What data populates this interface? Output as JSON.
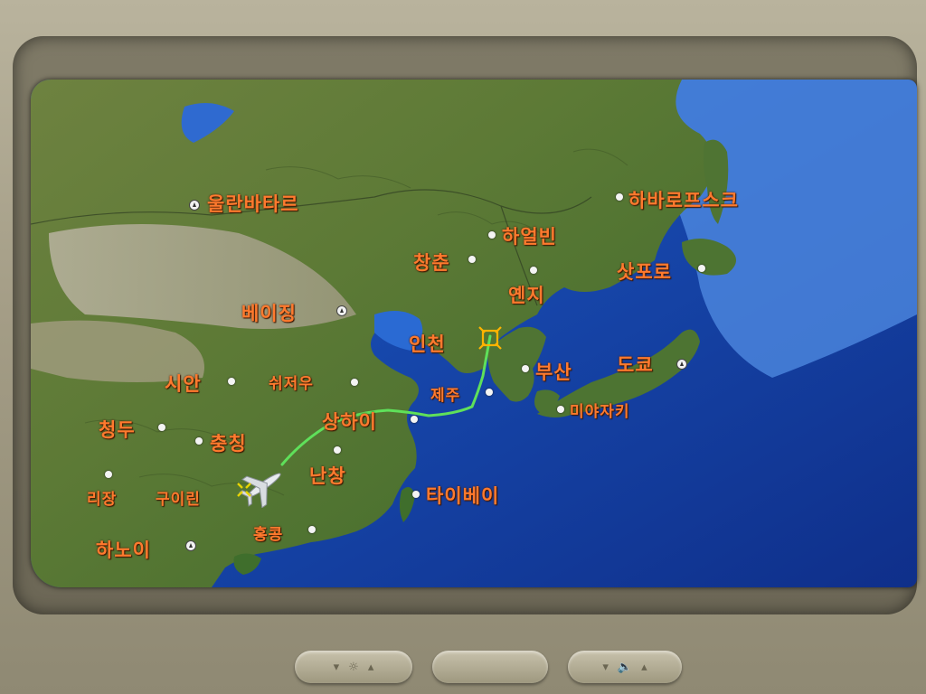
{
  "cities": [
    {
      "name": "울란바타르",
      "size": "large",
      "marker": "capital"
    },
    {
      "name": "하바로프스크",
      "size": "large",
      "marker": "city"
    },
    {
      "name": "하얼빈",
      "size": "large",
      "marker": "city"
    },
    {
      "name": "창춘",
      "size": "large",
      "marker": "city"
    },
    {
      "name": "삿포로",
      "size": "large",
      "marker": "city"
    },
    {
      "name": "옌지",
      "size": "large",
      "marker": "city"
    },
    {
      "name": "베이징",
      "size": "large",
      "marker": "capital"
    },
    {
      "name": "인천",
      "size": "large",
      "marker": "airport"
    },
    {
      "name": "시안",
      "size": "large",
      "marker": "city"
    },
    {
      "name": "쉬저우",
      "size": "large",
      "marker": "city"
    },
    {
      "name": "부산",
      "size": "large",
      "marker": "city"
    },
    {
      "name": "도쿄",
      "size": "large",
      "marker": "capital"
    },
    {
      "name": "제주",
      "size": "large",
      "marker": "city"
    },
    {
      "name": "미야자키",
      "size": "small",
      "marker": "city"
    },
    {
      "name": "상하이",
      "size": "large",
      "marker": "city"
    },
    {
      "name": "청두",
      "size": "large",
      "marker": "city"
    },
    {
      "name": "충칭",
      "size": "large",
      "marker": "city"
    },
    {
      "name": "난창",
      "size": "large",
      "marker": "city"
    },
    {
      "name": "리장",
      "size": "small",
      "marker": "city"
    },
    {
      "name": "구이린",
      "size": "small",
      "marker": "city"
    },
    {
      "name": "타이베이",
      "size": "large",
      "marker": "city"
    },
    {
      "name": "홍콩",
      "size": "small",
      "marker": "city"
    },
    {
      "name": "하노이",
      "size": "large",
      "marker": "capital"
    }
  ],
  "flight": {
    "destination": "인천",
    "path_color": "#5fe05a",
    "aircraft_icon": "airplane-icon",
    "destination_icon": "airport-target-icon"
  },
  "colors": {
    "label": "#ff7a2e",
    "sea": "#1f5fc8",
    "land": "#5f7a3a"
  },
  "hardware_buttons": [
    {
      "name": "brightness-button",
      "icon": "sun-icon"
    },
    {
      "name": "center-button",
      "icon": ""
    },
    {
      "name": "volume-button",
      "icon": "speaker-icon"
    }
  ]
}
